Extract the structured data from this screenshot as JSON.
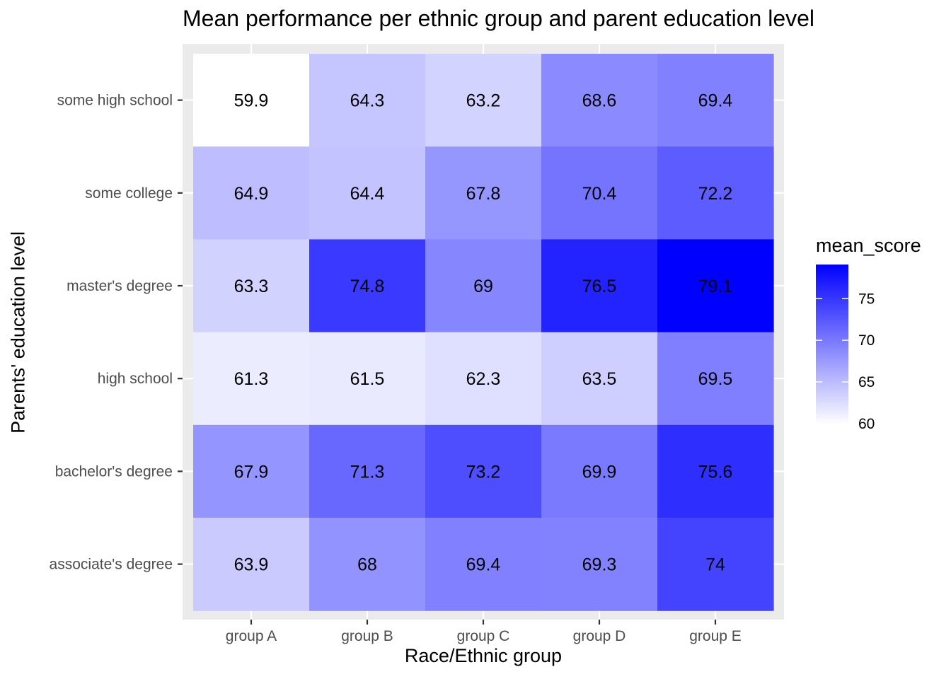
{
  "chart_data": {
    "type": "heatmap",
    "title": "Mean performance per ethnic group and parent education level",
    "xlabel": "Race/Ethnic group",
    "ylabel": "Parents' education level",
    "x_categories": [
      "group A",
      "group B",
      "group C",
      "group D",
      "group E"
    ],
    "y_categories_top_to_bottom": [
      "some high school",
      "some college",
      "master's degree",
      "high school",
      "bachelor's degree",
      "associate's degree"
    ],
    "values": [
      [
        59.9,
        64.3,
        63.2,
        68.6,
        69.4
      ],
      [
        64.9,
        64.4,
        67.8,
        70.4,
        72.2
      ],
      [
        63.3,
        74.8,
        69,
        76.5,
        79.1
      ],
      [
        61.3,
        61.5,
        62.3,
        63.5,
        69.5
      ],
      [
        67.9,
        71.3,
        73.2,
        69.9,
        75.6
      ],
      [
        63.9,
        68,
        69.4,
        69.3,
        74
      ]
    ],
    "legend": {
      "title": "mean_score",
      "ticks": [
        60,
        65,
        70,
        75
      ],
      "range": [
        59.9,
        79.1
      ],
      "color_low": "#ffffff",
      "color_high": "#0000ff"
    },
    "panel_background": "#ebebeb",
    "grid": true
  }
}
